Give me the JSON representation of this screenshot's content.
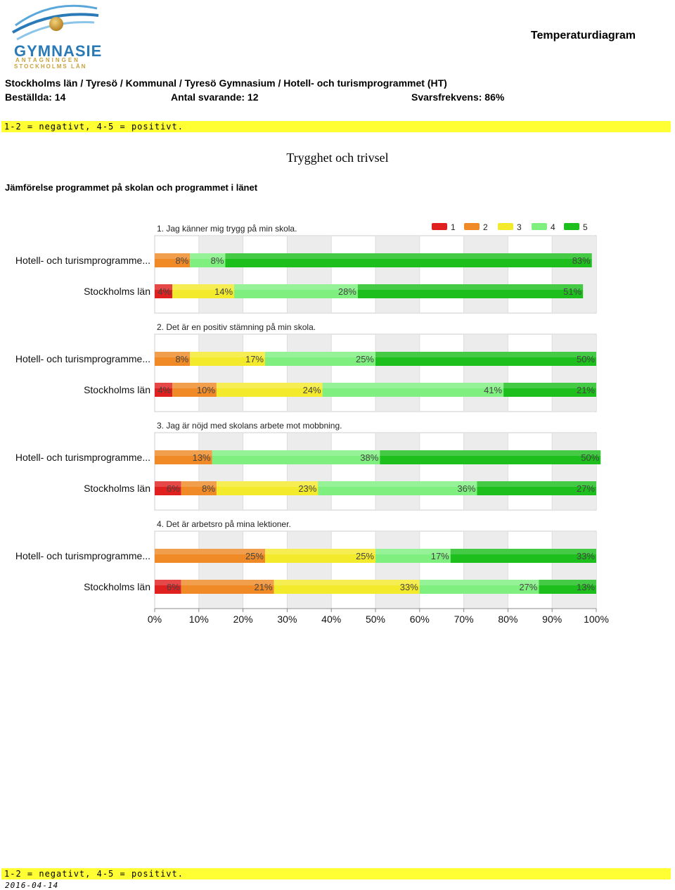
{
  "logo": {
    "line1": "GYMNASIE",
    "line2": "ANTAGNINGEN",
    "line3": "STOCKHOLMS LÄN"
  },
  "header": {
    "title": "Temperaturdiagram",
    "breadcrumb": "Stockholms län / Tyresö / Kommunal / Tyresö Gymnasium / Hotell- och turismprogrammet (HT)",
    "ordered": "Beställda: 14",
    "respondents": "Antal svarande: 12",
    "response_rate": "Svarsfrekvens: 86%",
    "scale_note": "1-2 = negativt, 4-5 = positivt."
  },
  "section": {
    "title": "Trygghet och trivsel",
    "comparison": "Jämförelse programmet på skolan och programmet i länet"
  },
  "footer": {
    "scale_note": "1-2 = negativt, 4-5 = positivt.",
    "date": "2016-04-14"
  },
  "colors": {
    "1": "#e0201e",
    "2": "#f08a26",
    "3": "#f3ea2c",
    "4": "#7ff07f",
    "5": "#1cbf1c"
  },
  "chart_data": {
    "type": "bar",
    "stacked": true,
    "orientation": "horizontal",
    "legend": [
      "1",
      "2",
      "3",
      "4",
      "5"
    ],
    "legend_position": "top-right",
    "xlim": [
      0,
      100
    ],
    "xticks": [
      "0%",
      "10%",
      "20%",
      "30%",
      "40%",
      "50%",
      "60%",
      "70%",
      "80%",
      "90%",
      "100%"
    ],
    "grid": true,
    "groups": [
      {
        "question": "1. Jag känner mig trygg på min skola.",
        "rows": [
          {
            "label": "Hotell- och turismprogramme...",
            "values": [
              0,
              8,
              0,
              8,
              83
            ],
            "labels": [
              "",
              "8%",
              "",
              "8%",
              "83%"
            ]
          },
          {
            "label": "Stockholms län",
            "values": [
              4,
              0,
              14,
              28,
              51
            ],
            "labels": [
              "4%",
              "",
              "14%",
              "28%",
              "51%"
            ]
          }
        ]
      },
      {
        "question": "2. Det är en positiv stämning på min skola.",
        "rows": [
          {
            "label": "Hotell- och turismprogramme...",
            "values": [
              0,
              8,
              17,
              25,
              50
            ],
            "labels": [
              "",
              "8%",
              "17%",
              "25%",
              "50%"
            ]
          },
          {
            "label": "Stockholms län",
            "values": [
              4,
              10,
              24,
              41,
              21
            ],
            "labels": [
              "4%",
              "10%",
              "24%",
              "41%",
              "21%"
            ]
          }
        ]
      },
      {
        "question": "3. Jag är nöjd med skolans arbete mot mobbning.",
        "rows": [
          {
            "label": "Hotell- och turismprogramme...",
            "values": [
              0,
              13,
              0,
              38,
              50
            ],
            "labels": [
              "",
              "13%",
              "",
              "38%",
              "50%"
            ]
          },
          {
            "label": "Stockholms län",
            "values": [
              6,
              8,
              23,
              36,
              27
            ],
            "labels": [
              "6%",
              "8%",
              "23%",
              "36%",
              "27%"
            ]
          }
        ]
      },
      {
        "question": "4. Det är arbetsro på mina lektioner.",
        "rows": [
          {
            "label": "Hotell- och turismprogramme...",
            "values": [
              0,
              25,
              25,
              17,
              33
            ],
            "labels": [
              "",
              "25%",
              "25%",
              "17%",
              "33%"
            ]
          },
          {
            "label": "Stockholms län",
            "values": [
              6,
              21,
              33,
              27,
              13
            ],
            "labels": [
              "6%",
              "21%",
              "33%",
              "27%",
              "13%"
            ]
          }
        ]
      }
    ]
  }
}
